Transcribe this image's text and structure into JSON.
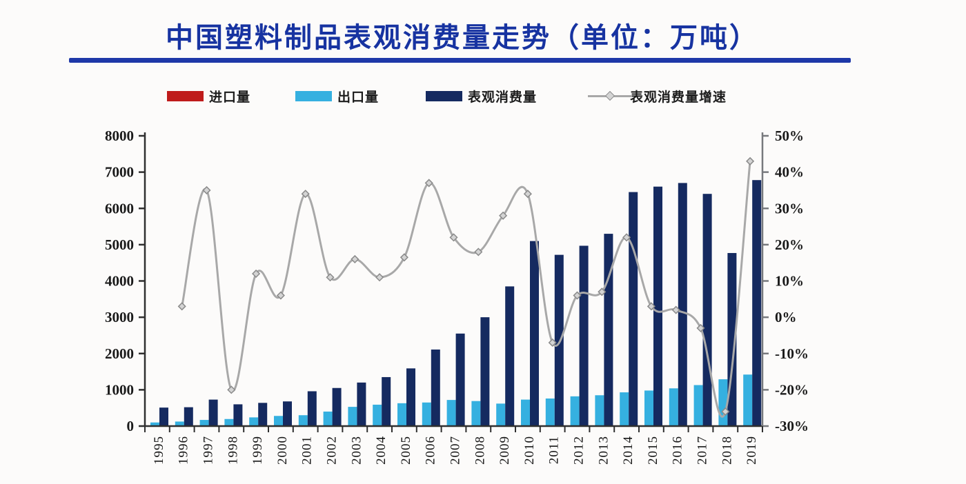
{
  "title": "中国塑料制品表观消费量走势（单位：万吨）",
  "legend": [
    {
      "label": "进口量",
      "type": "bar",
      "color": "#bf1b1b"
    },
    {
      "label": "出口量",
      "type": "bar",
      "color": "#35b0e0"
    },
    {
      "label": "表观消费量",
      "type": "bar",
      "color": "#152a60"
    },
    {
      "label": "表观消费量增速",
      "type": "line",
      "color": "#a8a8a8"
    }
  ],
  "chart_data": {
    "type": "bar",
    "subtype": "grouped-bars-with-line",
    "title": "中国塑料制品表观消费量走势（单位：万吨）",
    "categories": [
      "1995",
      "1996",
      "1997",
      "1998",
      "1999",
      "2000",
      "2001",
      "2002",
      "2003",
      "2004",
      "2005",
      "2006",
      "2007",
      "2008",
      "2009",
      "2010",
      "2011",
      "2012",
      "2013",
      "2014",
      "2015",
      "2016",
      "2017",
      "2018",
      "2019"
    ],
    "series": [
      {
        "name": "进口量",
        "type": "bar",
        "axis": "left",
        "color": "#bf1b1b",
        "values": [
          0,
          0,
          0,
          0,
          0,
          0,
          0,
          0,
          0,
          0,
          0,
          0,
          0,
          0,
          0,
          0,
          0,
          0,
          0,
          0,
          0,
          0,
          0,
          0,
          0
        ]
      },
      {
        "name": "出口量",
        "type": "bar",
        "axis": "left",
        "color": "#35b0e0",
        "values": [
          100,
          125,
          170,
          195,
          240,
          280,
          300,
          400,
          530,
          590,
          630,
          650,
          720,
          690,
          620,
          730,
          760,
          820,
          850,
          930,
          980,
          1040,
          1130,
          1290,
          1420
        ]
      },
      {
        "name": "表观消费量",
        "type": "bar",
        "axis": "left",
        "color": "#152a60",
        "values": [
          510,
          520,
          730,
          600,
          640,
          680,
          960,
          1050,
          1200,
          1350,
          1590,
          2110,
          2550,
          3000,
          3850,
          5100,
          4720,
          4970,
          5300,
          6450,
          6600,
          6700,
          6400,
          4770,
          6780
        ]
      },
      {
        "name": "表观消费量增速",
        "type": "line",
        "axis": "right",
        "color": "#a8a8a8",
        "marker": "diamond",
        "values": [
          null,
          3,
          35,
          -20,
          12,
          6,
          34,
          11,
          16,
          11,
          16.5,
          37,
          22,
          18,
          28,
          34,
          -7,
          6,
          7,
          22,
          3,
          2,
          -3,
          -26,
          43
        ]
      }
    ],
    "left_axis": {
      "min": 0,
      "max": 8000,
      "tick_step": 1000,
      "ticks": [
        "0",
        "1000",
        "2000",
        "3000",
        "4000",
        "5000",
        "6000",
        "7000",
        "8000"
      ]
    },
    "right_axis": {
      "min": -30,
      "max": 50,
      "tick_step": 10,
      "ticks": [
        "-30%",
        "-20%",
        "-10%",
        "0%",
        "10%",
        "20%",
        "30%",
        "40%",
        "50%"
      ]
    },
    "grid": false,
    "legend_position": "top"
  }
}
